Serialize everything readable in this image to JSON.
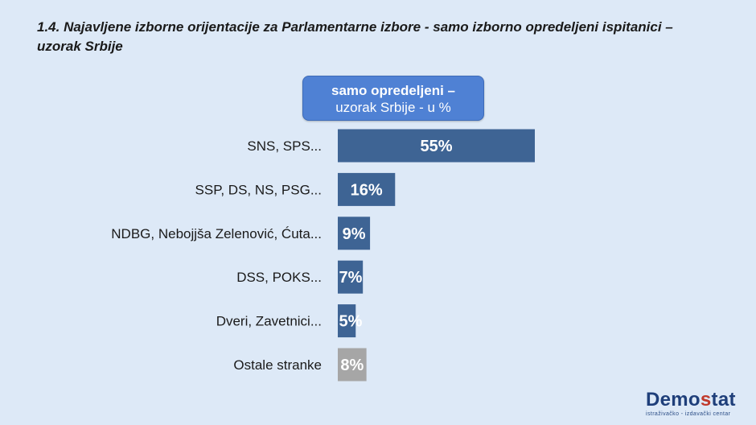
{
  "title": {
    "line1": "1.4. Najavljene izborne orijentacije za Parlamentarne izbore - samo izborno opredeljeni ispitanici –",
    "line2": "uzorak Srbije"
  },
  "series_box": {
    "line1": "samo opredeljeni –",
    "line2": "uzorak Srbije - u %"
  },
  "logo": {
    "name_part1": "Demo",
    "name_accent": "s",
    "name_part2": "tat",
    "tagline": "istraživačko - izdavački centar"
  },
  "chart_data": {
    "type": "bar",
    "orientation": "horizontal",
    "series_name": "samo opredeljeni – uzorak Srbije - u %",
    "categories": [
      "SNS, SPS...",
      "SSP, DS, NS, PSG...",
      "NDBG, Nebojjša Zelenović, Ćuta...",
      "DSS, POKS...",
      "Dveri, Zavetnici...",
      "Ostale stranke"
    ],
    "values": [
      55,
      16,
      9,
      7,
      5,
      8
    ],
    "value_labels": [
      "55%",
      "16%",
      "9%",
      "7%",
      "5%",
      "8%"
    ],
    "bar_colors": [
      "#3e6494",
      "#3e6494",
      "#3e6494",
      "#3e6494",
      "#3e6494",
      "#a6a6a6"
    ],
    "unit": "%",
    "grid": false,
    "legend": "none"
  }
}
